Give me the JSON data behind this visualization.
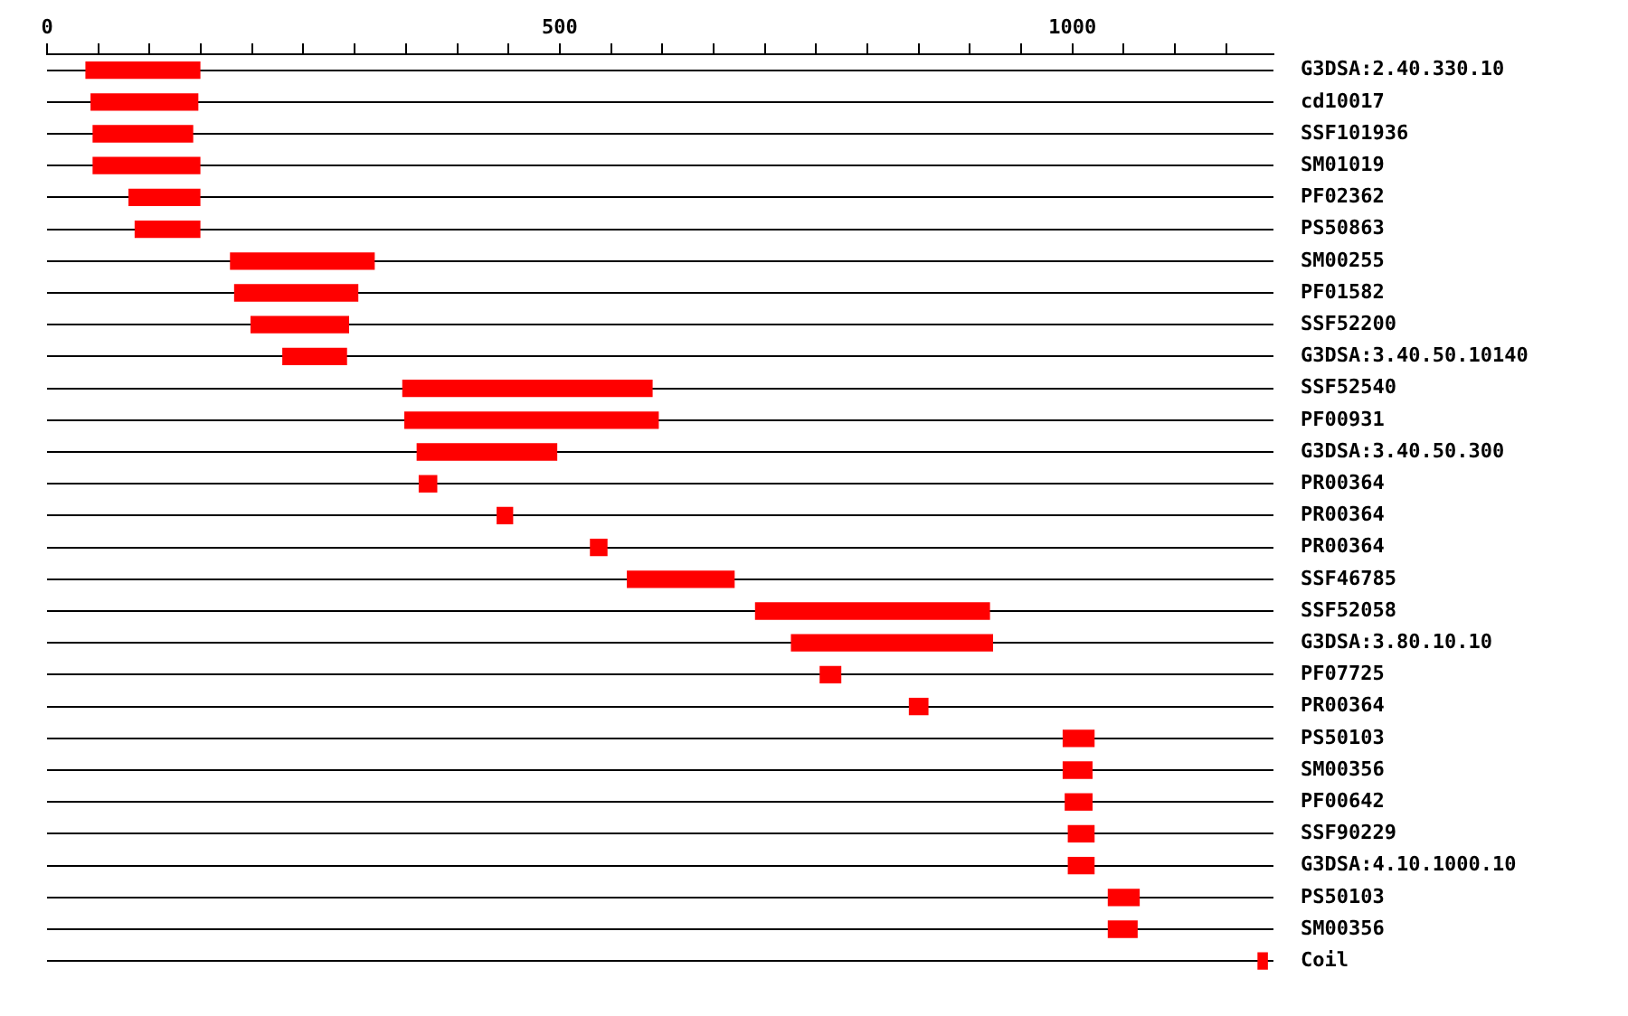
{
  "chart_data": {
    "type": "bar",
    "orientation": "horizontal",
    "categories": [
      "G3DSA:2.40.330.10",
      "cd10017",
      "SSF101936",
      "SM01019",
      "PF02362",
      "PS50863",
      "SM00255",
      "PF01582",
      "SSF52200",
      "G3DSA:3.40.50.10140",
      "SSF52540",
      "PF00931",
      "G3DSA:3.40.50.300",
      "PR00364",
      "PR00364",
      "PR00364",
      "SSF46785",
      "SSF52058",
      "G3DSA:3.80.10.10",
      "PF07725",
      "PR00364",
      "PS50103",
      "SM00356",
      "PF00642",
      "SSF90229",
      "G3DSA:4.10.1000.10",
      "PS50103",
      "SM00356",
      "Coil"
    ],
    "base": [
      38,
      43,
      45,
      45,
      80,
      86,
      179,
      183,
      199,
      230,
      347,
      349,
      361,
      363,
      439,
      530,
      566,
      691,
      726,
      754,
      841,
      991,
      991,
      993,
      996,
      996,
      1035,
      1035,
      1181
    ],
    "values": [
      111,
      104,
      97,
      104,
      69,
      63,
      140,
      120,
      95,
      62,
      243,
      247,
      136,
      17,
      15,
      16,
      104,
      228,
      196,
      20,
      18,
      30,
      28,
      26,
      25,
      25,
      30,
      28,
      9
    ],
    "color": "#ff0000",
    "xlim": [
      0,
      1196
    ],
    "xticks": [
      0,
      {
        "value": 50,
        "label": null
      },
      {
        "value": 100,
        "label": null
      },
      {
        "value": 150,
        "label": null
      },
      {
        "value": 200,
        "label": null
      },
      {
        "value": 250,
        "label": null
      },
      {
        "value": 300,
        "label": null
      },
      {
        "value": 350,
        "label": null
      },
      {
        "value": 400,
        "label": null
      },
      {
        "value": 450,
        "label": null
      },
      500,
      {
        "value": 550,
        "label": null
      },
      {
        "value": 600,
        "label": null
      },
      {
        "value": 650,
        "label": null
      },
      {
        "value": 700,
        "label": null
      },
      {
        "value": 750,
        "label": null
      },
      {
        "value": 800,
        "label": null
      },
      {
        "value": 850,
        "label": null
      },
      {
        "value": 900,
        "label": null
      },
      {
        "value": 950,
        "label": null
      },
      1000,
      {
        "value": 1050,
        "label": null
      },
      {
        "value": 1100,
        "label": null
      },
      {
        "value": 1150,
        "label": null
      }
    ],
    "grid": "y"
  }
}
